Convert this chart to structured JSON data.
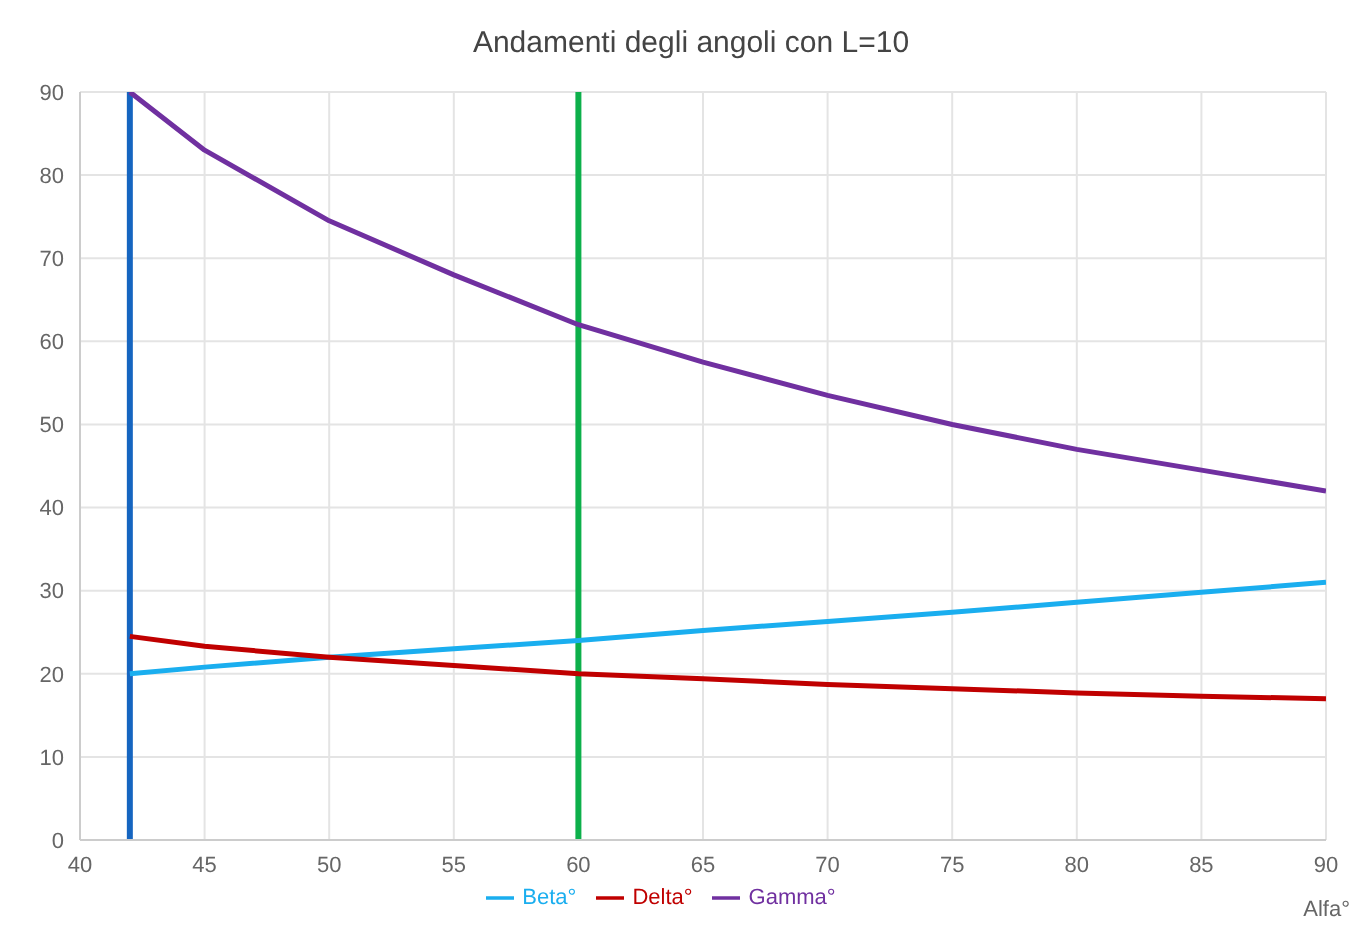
{
  "chart_data": {
    "type": "line",
    "title": "Andamenti degli angoli con L=10",
    "xlabel": "Alfa°",
    "x": [
      42,
      45,
      50,
      55,
      60,
      65,
      70,
      75,
      80,
      85,
      90
    ],
    "series": [
      {
        "name": "Beta°",
        "color": "#1aaeef",
        "values": [
          20,
          20.8,
          22,
          23,
          24,
          25.2,
          26.3,
          27.4,
          28.6,
          29.8,
          31
        ]
      },
      {
        "name": "Gamma°",
        "color": "#7030a0",
        "values": [
          90,
          83,
          74.5,
          68,
          62,
          57.5,
          53.5,
          50,
          47,
          44.5,
          42
        ]
      },
      {
        "name": "Delta°",
        "color": "#c00000",
        "values": [
          24.5,
          23.3,
          22,
          21,
          20,
          19.4,
          18.7,
          18.2,
          17.7,
          17.3,
          17
        ]
      }
    ],
    "xlim": [
      40,
      90
    ],
    "xticks": [
      40,
      45,
      50,
      55,
      60,
      65,
      70,
      75,
      80,
      85,
      90
    ],
    "ylim": [
      0,
      90
    ],
    "yticks": [
      0,
      10,
      20,
      30,
      40,
      50,
      60,
      70,
      80,
      90
    ],
    "ref_lines": [
      {
        "axis": "x",
        "value": 42,
        "color": "#1565c0"
      },
      {
        "axis": "x",
        "value": 60,
        "color": "#0db04b"
      }
    ],
    "grid": true,
    "legend": "bottom",
    "marker": "none",
    "line_style": "solid"
  }
}
